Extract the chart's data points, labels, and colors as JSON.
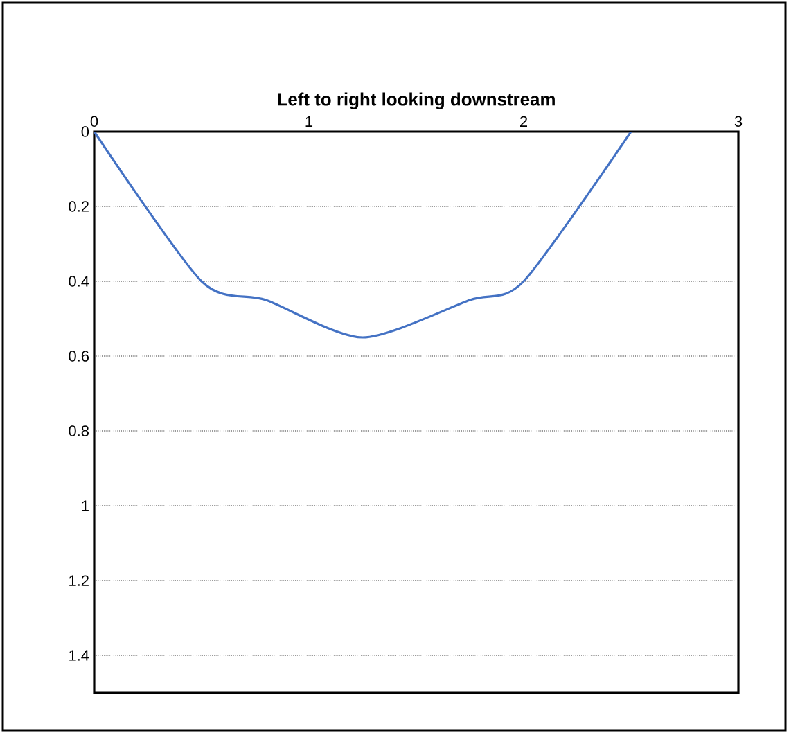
{
  "chart_data": {
    "type": "line",
    "xlabel": "Left to right looking downstream",
    "x": [
      0,
      0.5,
      0.8,
      1.25,
      1.75,
      2,
      2.5
    ],
    "series": [
      {
        "color": "#4472c4",
        "values": [
          0,
          0.4,
          0.45,
          0.55,
          0.45,
          0.4,
          0
        ]
      }
    ],
    "xlim": [
      0,
      3
    ],
    "xticks": [
      0,
      1,
      2,
      3
    ],
    "ylim": [
      1.5,
      0
    ],
    "yticks": [
      0,
      0.2,
      0.4,
      0.6,
      0.8,
      1,
      1.2,
      1.4
    ],
    "grid": "y",
    "marker": "none",
    "line_style": "solid"
  }
}
